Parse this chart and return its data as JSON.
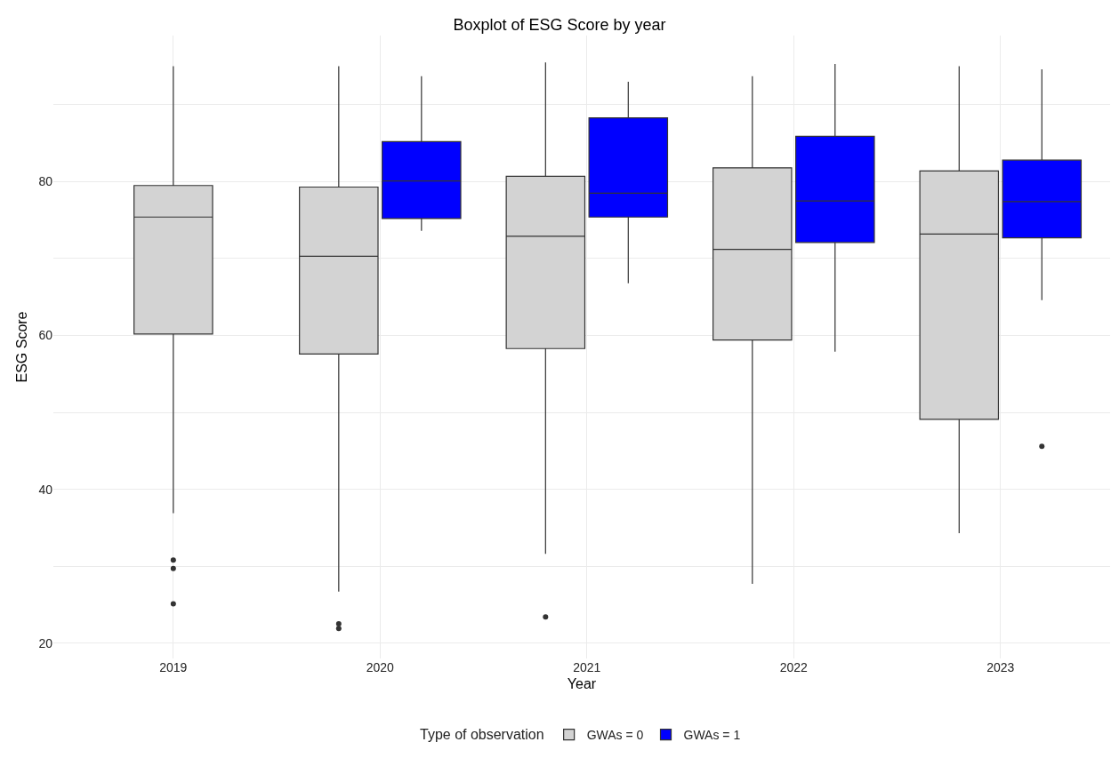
{
  "chart_data": {
    "type": "box",
    "title": "Boxplot of ESG Score by year",
    "xlabel": "Year",
    "ylabel": "ESG Score",
    "legend_title": "Type of observation",
    "categories": [
      "2019",
      "2020",
      "2021",
      "2022",
      "2023"
    ],
    "ylim": [
      18,
      99
    ],
    "yticks": [
      20,
      {
        "value": 30,
        "label": null
      },
      40,
      {
        "value": 50,
        "label": null
      },
      60,
      {
        "value": 70,
        "label": null
      },
      80,
      {
        "value": 90,
        "label": null
      }
    ],
    "grid": true,
    "legend": "bottom",
    "series": [
      {
        "name": "GWAs = 0",
        "color": "#d3d3d3",
        "boxes": [
          {
            "low": 36.9,
            "q1": 60.2,
            "median": 75.4,
            "q3": 79.5,
            "high": 95.0,
            "outliers": [
              30.8,
              29.7,
              25.1
            ]
          },
          {
            "low": 26.7,
            "q1": 57.6,
            "median": 70.3,
            "q3": 79.3,
            "high": 95.0,
            "outliers": [
              22.5,
              21.9
            ]
          },
          {
            "low": 31.6,
            "q1": 58.3,
            "median": 72.9,
            "q3": 80.7,
            "high": 95.5,
            "outliers": [
              23.4
            ]
          },
          {
            "low": 27.7,
            "q1": 59.4,
            "median": 71.2,
            "q3": 81.8,
            "high": 93.7
          },
          {
            "low": 34.3,
            "q1": 49.1,
            "median": 73.2,
            "q3": 81.4,
            "high": 95.0
          }
        ]
      },
      {
        "name": "GWAs = 1",
        "color": "#0000ff",
        "boxes": [
          null,
          {
            "low": 73.6,
            "q1": 75.2,
            "median": 80.1,
            "q3": 85.2,
            "high": 93.7
          },
          {
            "low": 66.8,
            "q1": 75.4,
            "median": 78.5,
            "q3": 88.3,
            "high": 93.0
          },
          {
            "low": 57.9,
            "q1": 72.1,
            "median": 77.5,
            "q3": 85.9,
            "high": 95.3
          },
          {
            "low": 64.6,
            "q1": 72.7,
            "median": 77.4,
            "q3": 82.8,
            "high": 94.6,
            "outliers": [
              45.6
            ]
          }
        ]
      }
    ]
  }
}
